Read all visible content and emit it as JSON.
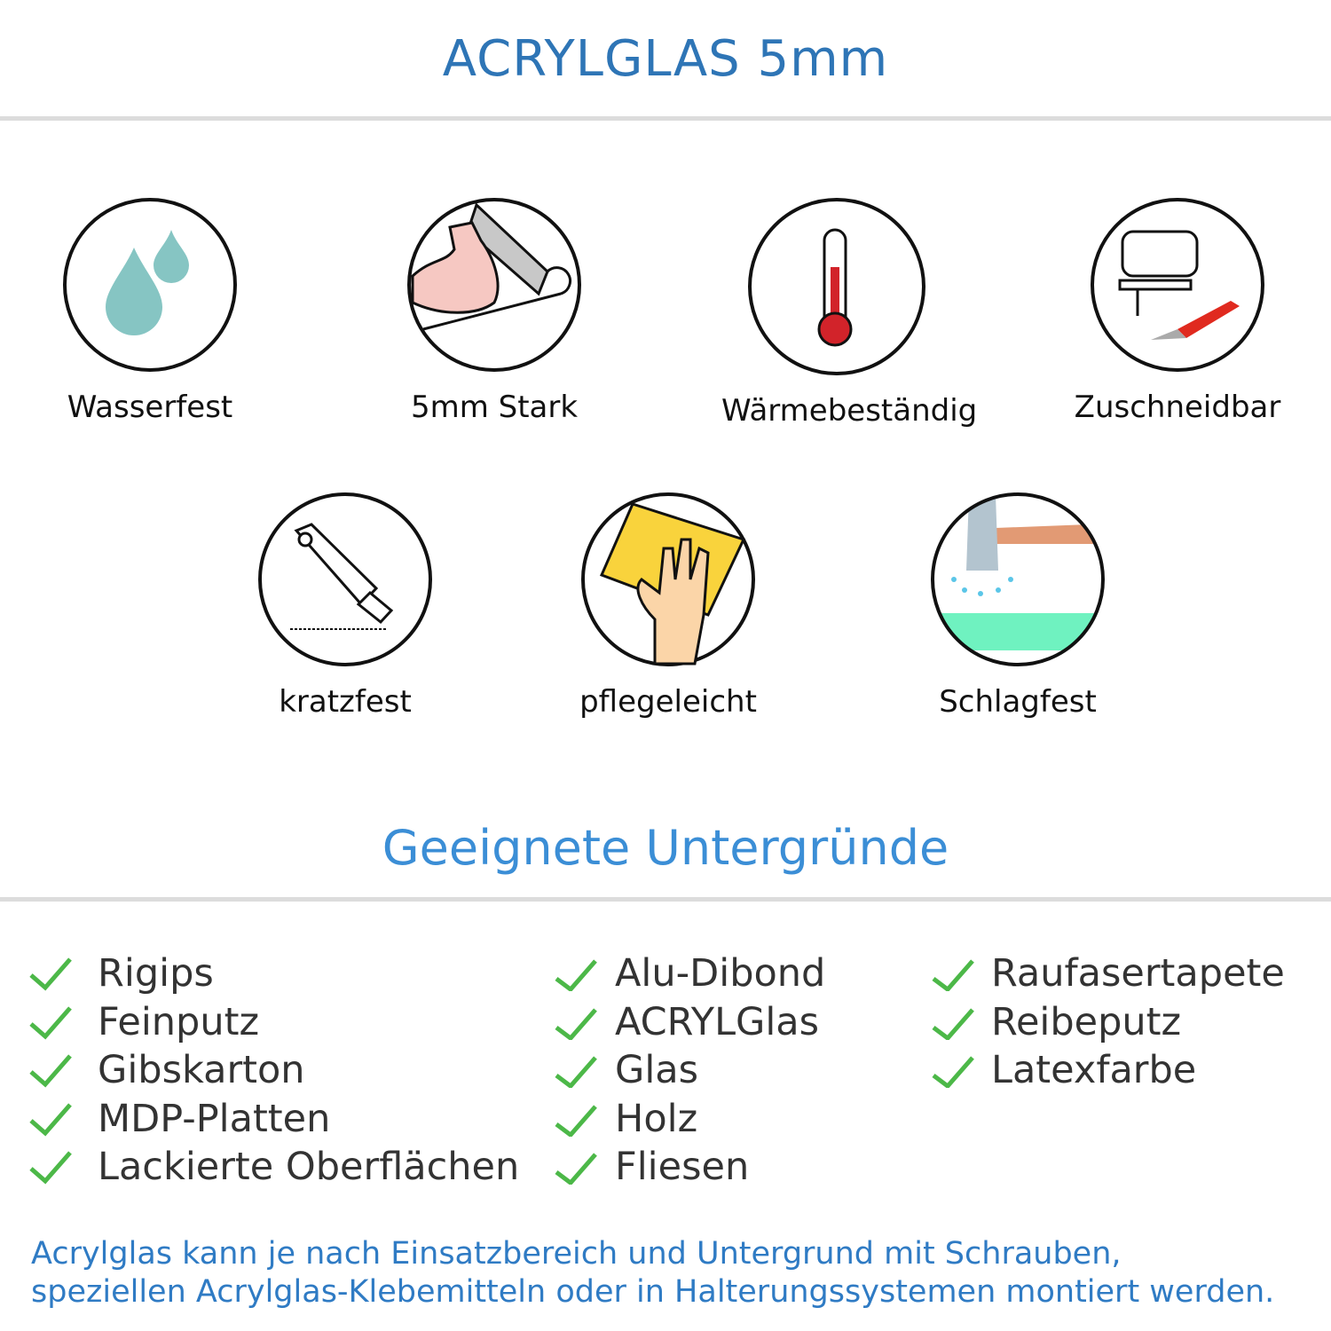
{
  "header": {
    "title": "ACRYLGLAS 5mm"
  },
  "features": [
    {
      "label": "Wasserfest",
      "icon": "water-drops-icon"
    },
    {
      "label": "5mm Stark",
      "icon": "strong-arm-icon"
    },
    {
      "label": "Wärmebeständig",
      "icon": "thermometer-icon"
    },
    {
      "label": "Zuschneidbar",
      "icon": "jigsaw-cutter-icon"
    },
    {
      "label": "kratzfest",
      "icon": "cutter-knife-icon"
    },
    {
      "label": "pflegeleicht",
      "icon": "cleaning-hand-icon"
    },
    {
      "label": "Schlagfest",
      "icon": "hammer-icon"
    }
  ],
  "surfaces": {
    "title": "Geeignete Untergründe",
    "columns": [
      [
        "Rigips",
        "Feinputz",
        "Gibskarton",
        "MDP-Platten",
        "Lackierte Oberflächen"
      ],
      [
        "Alu-Dibond",
        "ACRYLGlas",
        "Glas",
        "Holz",
        "Fliesen"
      ],
      [
        "Raufasertapete",
        "Reibeputz",
        "Latexfarbe"
      ]
    ],
    "check_color": "#4cb848"
  },
  "footer": {
    "line1": "Acrylglas kann je nach Einsatzbereich und Untergrund mit Schrauben,",
    "line2": "speziellen Acrylglas-Klebemitteln oder in Halterungssystemen montiert werden."
  }
}
